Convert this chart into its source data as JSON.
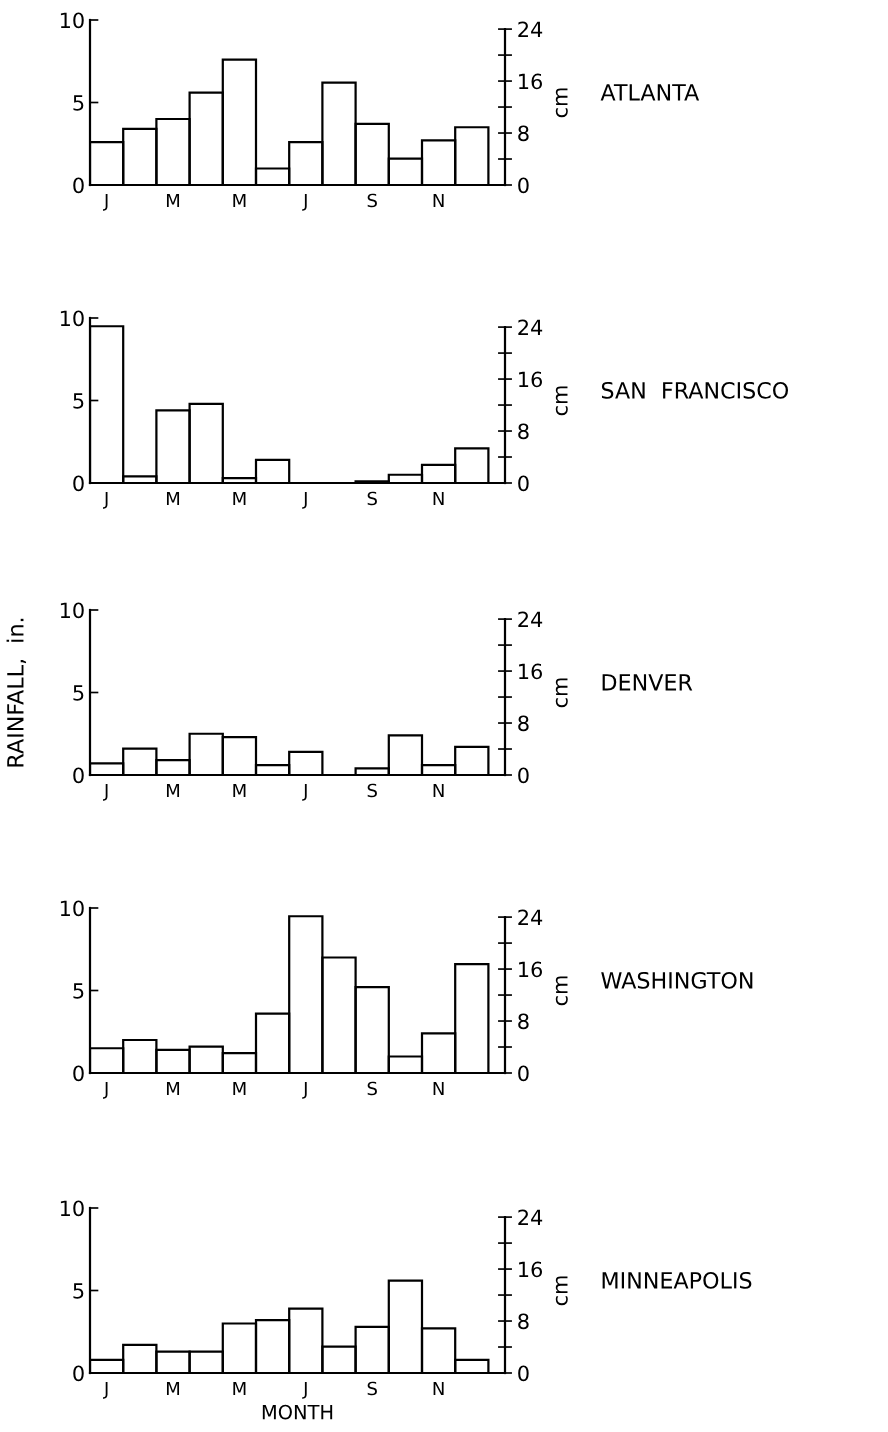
{
  "chart_data": [
    {
      "type": "bar",
      "categories": [
        "J",
        null,
        "M",
        null,
        "M",
        null,
        "J",
        null,
        "S",
        null,
        "N",
        null
      ],
      "series": [
        {
          "color": "#000000",
          "values": [
            2.6,
            3.4,
            4.0,
            5.6,
            7.6,
            1.0,
            2.6,
            6.2,
            3.7,
            1.6,
            2.7,
            3.5
          ]
        }
      ],
      "ylim": [
        0,
        10
      ],
      "yticks": [
        0,
        5,
        10
      ],
      "y2label": "cm",
      "y2lim": [
        0,
        25.4
      ],
      "y2ticks": [
        0,
        {
          "value": 4,
          "label": null
        },
        8,
        {
          "value": 12,
          "label": null
        },
        16,
        {
          "value": 20,
          "label": null
        },
        24
      ],
      "annotations": [
        "ATLANTA"
      ],
      "grid": false,
      "legend": false
    },
    {
      "type": "bar",
      "categories": [
        "J",
        null,
        "M",
        null,
        "M",
        null,
        "J",
        null,
        "S",
        null,
        "N",
        null
      ],
      "series": [
        {
          "color": "#000000",
          "values": [
            9.5,
            0.4,
            4.4,
            4.8,
            0.3,
            1.4,
            0.0,
            0.0,
            0.1,
            0.5,
            1.1,
            2.1
          ]
        }
      ],
      "ylim": [
        0,
        10
      ],
      "yticks": [
        0,
        5,
        10
      ],
      "y2label": "cm",
      "y2lim": [
        0,
        25.4
      ],
      "y2ticks": [
        0,
        {
          "value": 4,
          "label": null
        },
        8,
        {
          "value": 12,
          "label": null
        },
        16,
        {
          "value": 20,
          "label": null
        },
        24
      ],
      "annotations": [
        "SAN  FRANCISCO"
      ],
      "grid": false,
      "legend": false
    },
    {
      "type": "bar",
      "categories": [
        "J",
        null,
        "M",
        null,
        "M",
        null,
        "J",
        null,
        "S",
        null,
        "N",
        null
      ],
      "series": [
        {
          "color": "#000000",
          "values": [
            0.7,
            1.6,
            0.9,
            2.5,
            2.3,
            0.6,
            1.4,
            0.0,
            0.4,
            2.4,
            0.6,
            1.7
          ]
        }
      ],
      "ylabel": "RAINFALL,  in.",
      "ylim": [
        0,
        10
      ],
      "yticks": [
        0,
        5,
        10
      ],
      "y2label": "cm",
      "y2lim": [
        0,
        25.4
      ],
      "y2ticks": [
        0,
        {
          "value": 4,
          "label": null
        },
        8,
        {
          "value": 12,
          "label": null
        },
        16,
        {
          "value": 20,
          "label": null
        },
        24
      ],
      "annotations": [
        "DENVER"
      ],
      "grid": false,
      "legend": false
    },
    {
      "type": "bar",
      "categories": [
        "J",
        null,
        "M",
        null,
        "M",
        null,
        "J",
        null,
        "S",
        null,
        "N",
        null
      ],
      "series": [
        {
          "color": "#000000",
          "values": [
            1.5,
            2.0,
            1.4,
            1.6,
            1.2,
            3.6,
            9.5,
            7.0,
            5.2,
            1.0,
            2.4,
            6.6
          ]
        }
      ],
      "ylim": [
        0,
        10
      ],
      "yticks": [
        0,
        5,
        10
      ],
      "y2label": "cm",
      "y2lim": [
        0,
        25.4
      ],
      "y2ticks": [
        0,
        {
          "value": 4,
          "label": null
        },
        8,
        {
          "value": 12,
          "label": null
        },
        16,
        {
          "value": 20,
          "label": null
        },
        24
      ],
      "annotations": [
        "WASHINGTON"
      ],
      "grid": false,
      "legend": false
    },
    {
      "type": "bar",
      "categories": [
        "J",
        null,
        "M",
        null,
        "M",
        null,
        "J",
        null,
        "S",
        null,
        "N",
        null
      ],
      "series": [
        {
          "color": "#000000",
          "values": [
            0.8,
            1.7,
            1.3,
            1.3,
            3.0,
            3.2,
            3.9,
            1.6,
            2.8,
            5.6,
            2.7,
            0.8
          ]
        }
      ],
      "xlabel": "MONTH",
      "ylim": [
        0,
        10
      ],
      "yticks": [
        0,
        5,
        10
      ],
      "y2label": "cm",
      "y2lim": [
        0,
        25.4
      ],
      "y2ticks": [
        0,
        {
          "value": 4,
          "label": null
        },
        8,
        {
          "value": 12,
          "label": null
        },
        16,
        {
          "value": 20,
          "label": null
        },
        24
      ],
      "annotations": [
        "MINNEAPOLIS"
      ],
      "grid": false,
      "legend": false
    }
  ]
}
